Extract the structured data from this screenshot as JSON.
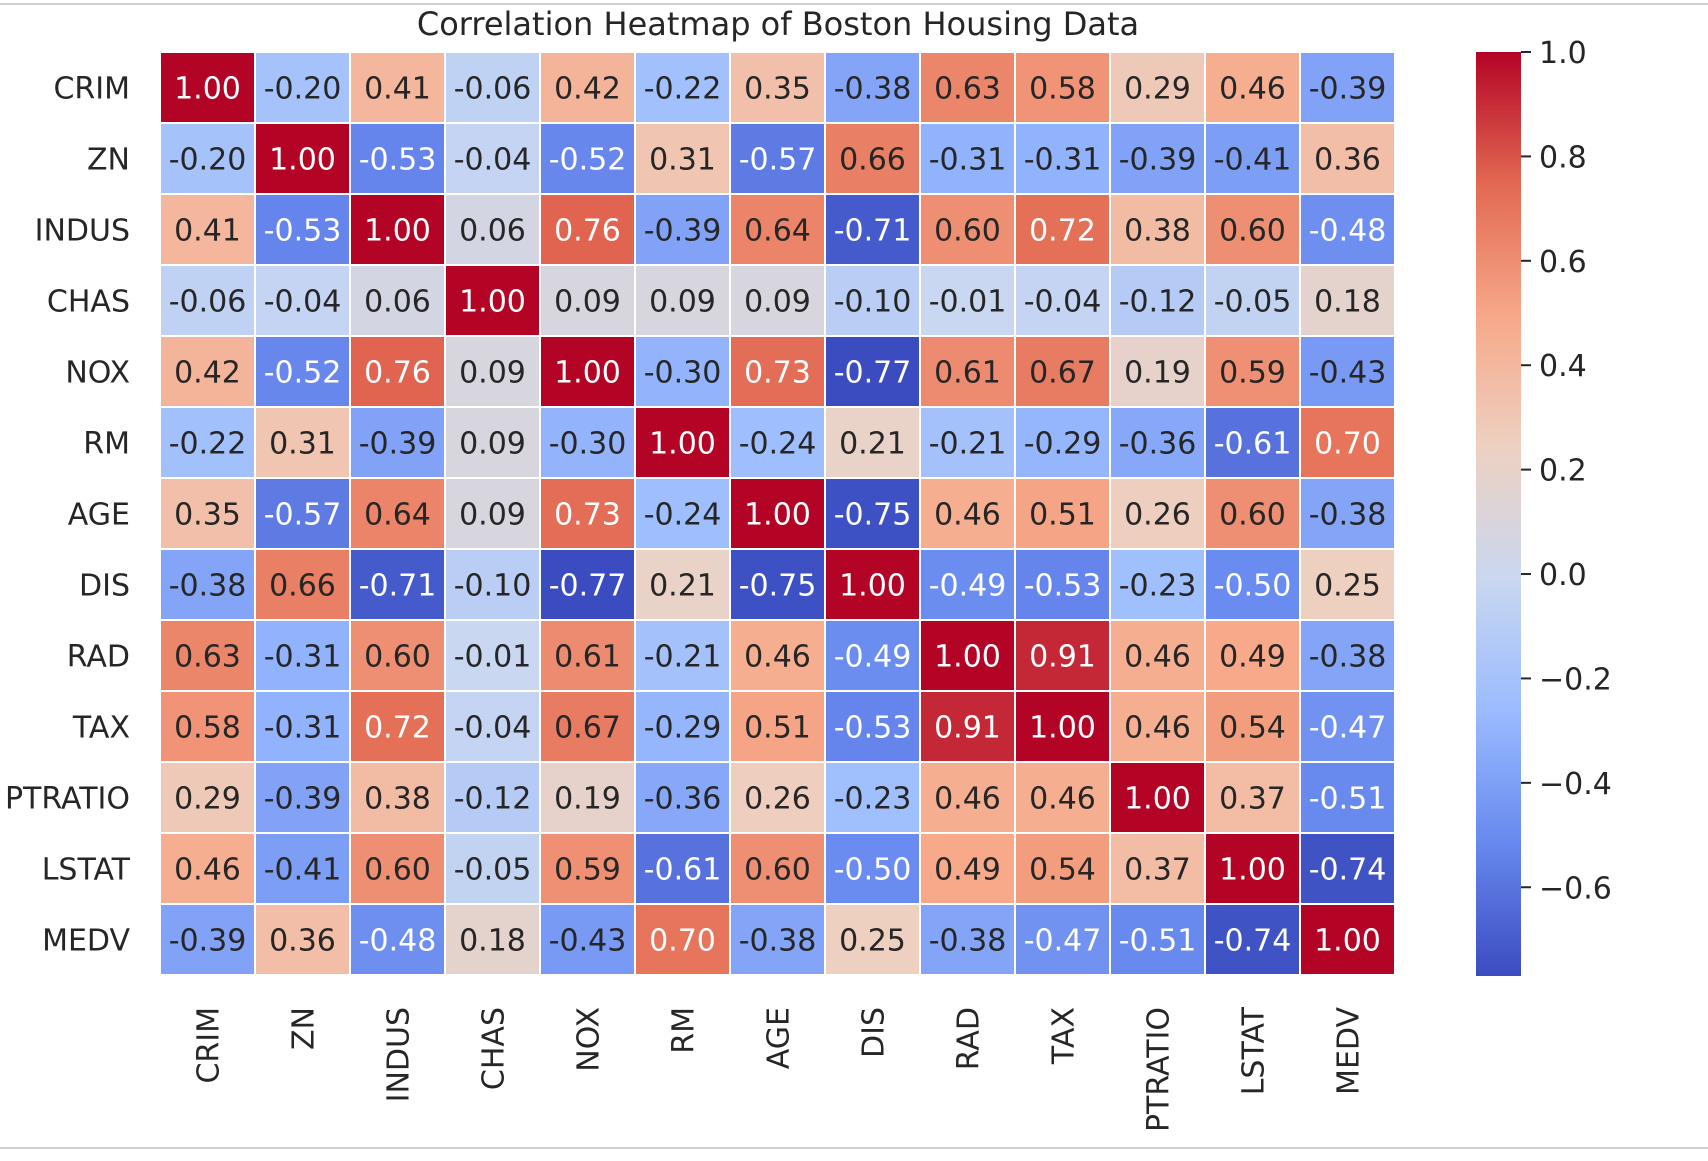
{
  "chart_data": {
    "type": "heatmap",
    "title": "Correlation Heatmap of Boston Housing Data",
    "xlabel": "",
    "ylabel": "",
    "rows": [
      "CRIM",
      "ZN",
      "INDUS",
      "CHAS",
      "NOX",
      "RM",
      "AGE",
      "DIS",
      "RAD",
      "TAX",
      "PTRATIO",
      "LSTAT",
      "MEDV"
    ],
    "cols": [
      "CRIM",
      "ZN",
      "INDUS",
      "CHAS",
      "NOX",
      "RM",
      "AGE",
      "DIS",
      "RAD",
      "TAX",
      "PTRATIO",
      "LSTAT",
      "MEDV"
    ],
    "values": [
      [
        1.0,
        -0.2,
        0.41,
        -0.06,
        0.42,
        -0.22,
        0.35,
        -0.38,
        0.63,
        0.58,
        0.29,
        0.46,
        -0.39
      ],
      [
        -0.2,
        1.0,
        -0.53,
        -0.04,
        -0.52,
        0.31,
        -0.57,
        0.66,
        -0.31,
        -0.31,
        -0.39,
        -0.41,
        0.36
      ],
      [
        0.41,
        -0.53,
        1.0,
        0.06,
        0.76,
        -0.39,
        0.64,
        -0.71,
        0.6,
        0.72,
        0.38,
        0.6,
        -0.48
      ],
      [
        -0.06,
        -0.04,
        0.06,
        1.0,
        0.09,
        0.09,
        0.09,
        -0.1,
        -0.01,
        -0.04,
        -0.12,
        -0.05,
        0.18
      ],
      [
        0.42,
        -0.52,
        0.76,
        0.09,
        1.0,
        -0.3,
        0.73,
        -0.77,
        0.61,
        0.67,
        0.19,
        0.59,
        -0.43
      ],
      [
        -0.22,
        0.31,
        -0.39,
        0.09,
        -0.3,
        1.0,
        -0.24,
        0.21,
        -0.21,
        -0.29,
        -0.36,
        -0.61,
        0.7
      ],
      [
        0.35,
        -0.57,
        0.64,
        0.09,
        0.73,
        -0.24,
        1.0,
        -0.75,
        0.46,
        0.51,
        0.26,
        0.6,
        -0.38
      ],
      [
        -0.38,
        0.66,
        -0.71,
        -0.1,
        -0.77,
        0.21,
        -0.75,
        1.0,
        -0.49,
        -0.53,
        -0.23,
        -0.5,
        0.25
      ],
      [
        0.63,
        -0.31,
        0.6,
        -0.01,
        0.61,
        -0.21,
        0.46,
        -0.49,
        1.0,
        0.91,
        0.46,
        0.49,
        -0.38
      ],
      [
        0.58,
        -0.31,
        0.72,
        -0.04,
        0.67,
        -0.29,
        0.51,
        -0.53,
        0.91,
        1.0,
        0.46,
        0.54,
        -0.47
      ],
      [
        0.29,
        -0.39,
        0.38,
        -0.12,
        0.19,
        -0.36,
        0.26,
        -0.23,
        0.46,
        0.46,
        1.0,
        0.37,
        -0.51
      ],
      [
        0.46,
        -0.41,
        0.6,
        -0.05,
        0.59,
        -0.61,
        0.6,
        -0.5,
        0.49,
        0.54,
        0.37,
        1.0,
        -0.74
      ],
      [
        -0.39,
        0.36,
        -0.48,
        0.18,
        -0.43,
        0.7,
        -0.38,
        0.25,
        -0.38,
        -0.47,
        -0.51,
        -0.74,
        1.0
      ]
    ],
    "value_format": "0.00",
    "colormap": "coolwarm",
    "colormap_stops": [
      "#3b4cc0",
      "#6788ee",
      "#9abbff",
      "#c9d7f0",
      "#edd1c2",
      "#f7a889",
      "#e26952",
      "#b40426"
    ],
    "vmin": -0.77,
    "vmax": 1.0,
    "colorbar": {
      "ticks": [
        1.0,
        0.8,
        0.6,
        0.4,
        0.2,
        0.0,
        -0.2,
        -0.4,
        -0.6
      ],
      "tick_labels": [
        "1.0",
        "0.8",
        "0.6",
        "0.4",
        "0.2",
        "0.0",
        "−0.2",
        "−0.4",
        "−0.6"
      ]
    },
    "legend": "right",
    "grid": false
  }
}
